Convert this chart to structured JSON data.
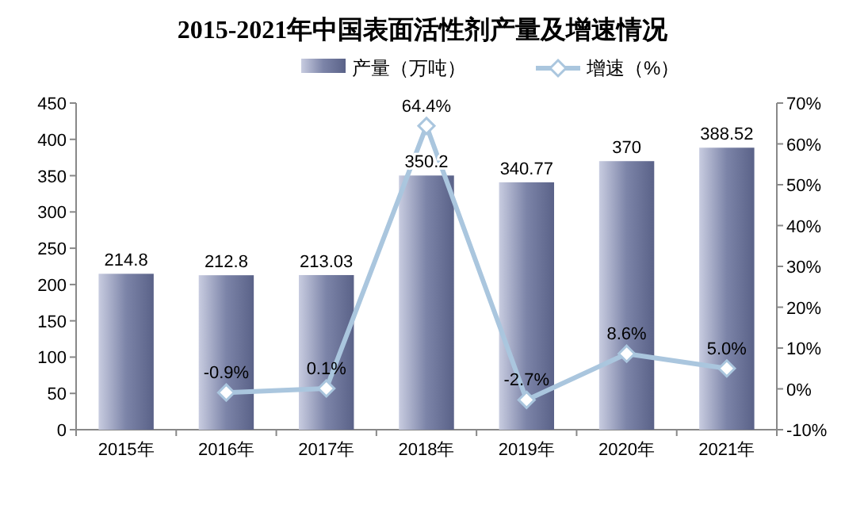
{
  "chart_data": {
    "type": "bar",
    "title": "2015-2021年中国表面活性剂产量及增速情况",
    "categories": [
      "2015年",
      "2016年",
      "2017年",
      "2018年",
      "2019年",
      "2020年",
      "2021年"
    ],
    "series": [
      {
        "name": "产量（万吨）",
        "color": "#7c84a8",
        "values": [
          214.8,
          212.8,
          213.03,
          350.2,
          340.77,
          370,
          388.52
        ],
        "value_labels": [
          "214.8",
          "212.8",
          "213.03",
          "350.2",
          "340.77",
          "370",
          "388.52"
        ]
      },
      {
        "name": "增速（%）",
        "type": "line",
        "axis": "y2",
        "color": "#aac6de",
        "marker": "diamond",
        "values": [
          null,
          -0.9,
          0.1,
          64.4,
          -2.7,
          8.6,
          5.0
        ],
        "value_labels": [
          null,
          "-0.9%",
          "0.1%",
          "64.4%",
          "-2.7%",
          "8.6%",
          "5.0%"
        ]
      }
    ],
    "ylim": [
      0,
      450
    ],
    "yticks": [
      0,
      50,
      100,
      150,
      200,
      250,
      300,
      350,
      400,
      450
    ],
    "y2lim": [
      -10,
      70
    ],
    "y2ticks": [
      {
        "value": -10,
        "label": "-10%"
      },
      {
        "value": 0,
        "label": "0%"
      },
      {
        "value": 10,
        "label": "10%"
      },
      {
        "value": 20,
        "label": "20%"
      },
      {
        "value": 30,
        "label": "30%"
      },
      {
        "value": 40,
        "label": "40%"
      },
      {
        "value": 50,
        "label": "50%"
      },
      {
        "value": 60,
        "label": "60%"
      },
      {
        "value": 70,
        "label": "70%"
      }
    ],
    "legend": "top"
  }
}
